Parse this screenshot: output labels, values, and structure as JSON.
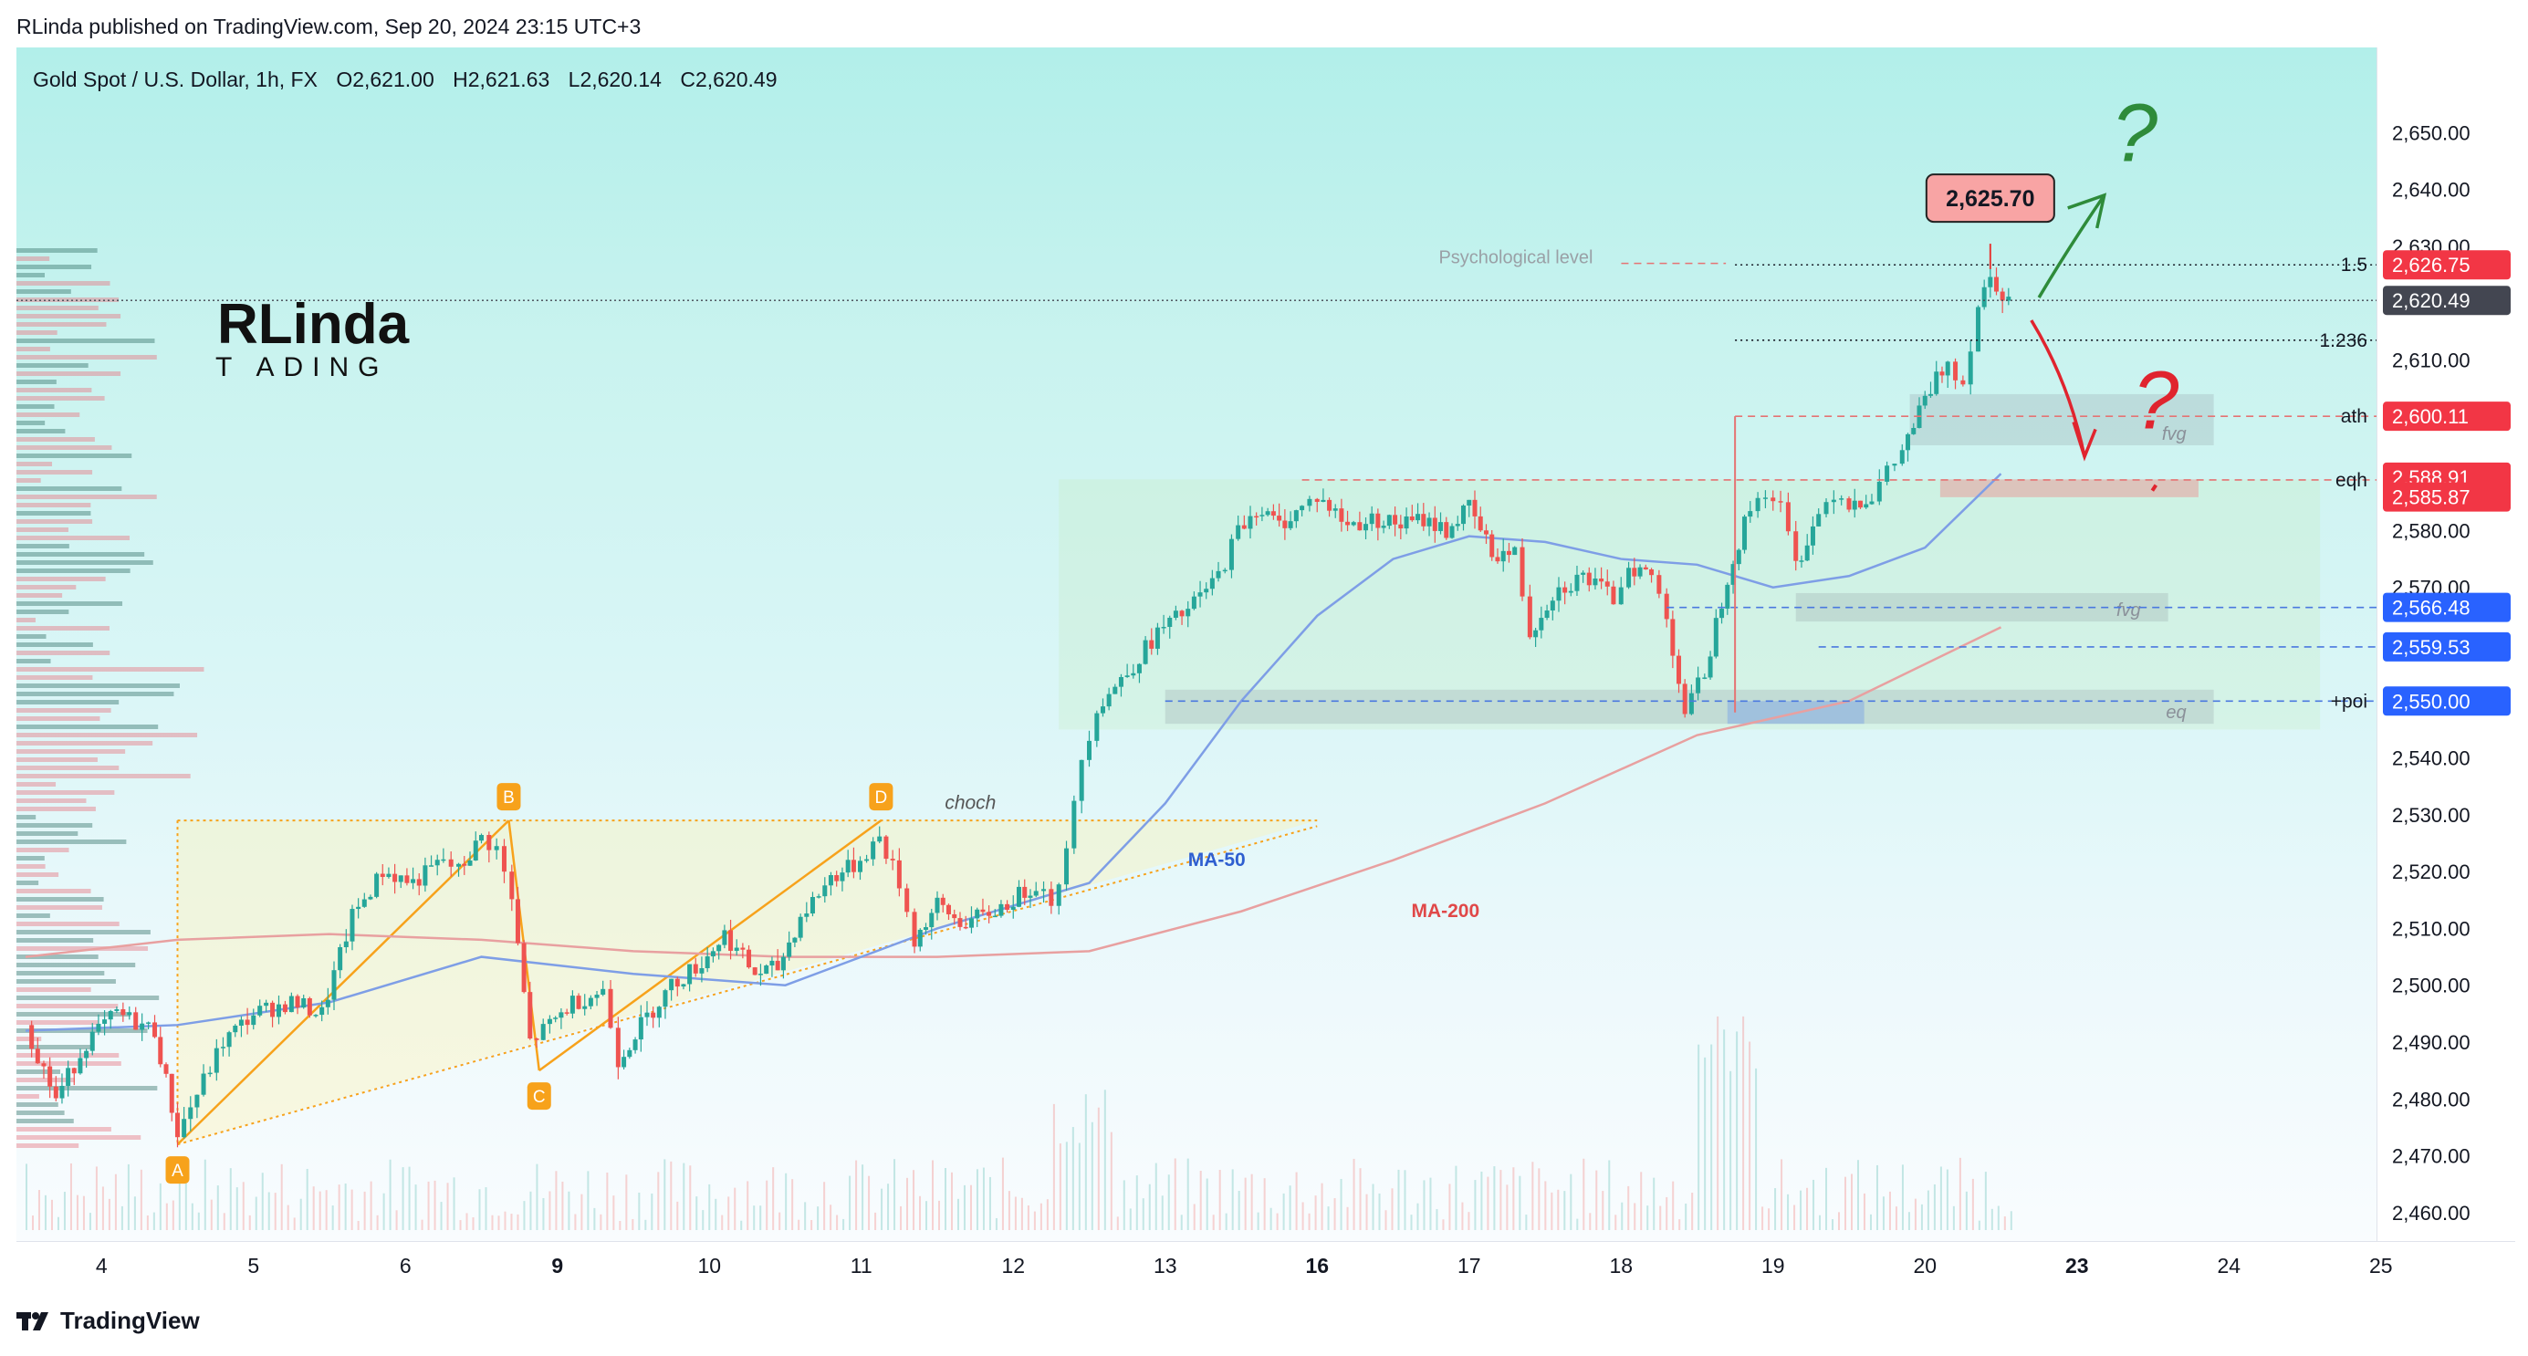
{
  "publish_line": "RLinda published on TradingView.com, Sep 20, 2024 23:15 UTC+3",
  "header": {
    "symbol": "Gold Spot / U.S. Dollar, 1h, FX",
    "open": "O2,621.00",
    "high": "H2,621.63",
    "low": "L2,620.14",
    "close": "C2,620.49"
  },
  "logo": {
    "line1": "RLinda",
    "line2": "T ADING"
  },
  "footer": {
    "brand": "TradingView"
  },
  "colors": {
    "up": "#26a69a",
    "down": "#ef5350",
    "ma50": "#7e9ee6",
    "ma200": "#e8a0a0",
    "blue_badge": "#2962ff",
    "red_badge": "#f23645",
    "current_badge": "#434651",
    "pattern": "#f7a21b",
    "green_arrow": "#2e8b3a",
    "red_arrow": "#e0242e"
  },
  "chart_data": {
    "type": "candlestick",
    "title": "Gold Spot / U.S. Dollar, 1h, FX",
    "ylim": [
      2455,
      2665
    ],
    "grid": false,
    "y_ticks": [
      2460,
      2470,
      2480,
      2490,
      2500,
      2510,
      2520,
      2530,
      2540,
      2560,
      2570,
      2580,
      2610,
      2630,
      2640,
      2650
    ],
    "y_tick_labels": [
      "2,460.00",
      "2,470.00",
      "2,480.00",
      "2,490.00",
      "2,500.00",
      "2,510.00",
      "2,520.00",
      "2,530.00",
      "2,540.00",
      "2,560.00",
      "2,570.00",
      "2,580.00",
      "2,610.00",
      "2,630.00",
      "2,640.00",
      "2,650.00"
    ],
    "x_ticks": [
      {
        "label": "4",
        "t": 3.5,
        "bold": false
      },
      {
        "label": "5",
        "t": 4.5,
        "bold": false
      },
      {
        "label": "6",
        "t": 5.5,
        "bold": false
      },
      {
        "label": "9",
        "t": 6.5,
        "bold": true
      },
      {
        "label": "10",
        "t": 7.5,
        "bold": false
      },
      {
        "label": "11",
        "t": 8.5,
        "bold": false
      },
      {
        "label": "12",
        "t": 9.5,
        "bold": false
      },
      {
        "label": "13",
        "t": 10.5,
        "bold": false
      },
      {
        "label": "16",
        "t": 11.5,
        "bold": true
      },
      {
        "label": "17",
        "t": 12.5,
        "bold": false
      },
      {
        "label": "18",
        "t": 13.5,
        "bold": false
      },
      {
        "label": "19",
        "t": 14.5,
        "bold": false
      },
      {
        "label": "20",
        "t": 15.5,
        "bold": false
      },
      {
        "label": "23",
        "t": 16.5,
        "bold": true
      },
      {
        "label": "24",
        "t": 17.5,
        "bold": false
      },
      {
        "label": "25",
        "t": 18.5,
        "bold": false
      }
    ],
    "ohlc_path": [
      [
        3.0,
        2493
      ],
      [
        3.2,
        2480
      ],
      [
        3.4,
        2490
      ],
      [
        3.6,
        2495
      ],
      [
        3.85,
        2492
      ],
      [
        4.0,
        2474
      ],
      [
        4.3,
        2490
      ],
      [
        4.5,
        2495
      ],
      [
        4.75,
        2497
      ],
      [
        4.95,
        2495
      ],
      [
        5.15,
        2512
      ],
      [
        5.35,
        2520
      ],
      [
        5.55,
        2518
      ],
      [
        5.75,
        2522
      ],
      [
        5.85,
        2520
      ],
      [
        6.0,
        2526
      ],
      [
        6.1,
        2524
      ],
      [
        6.2,
        2515
      ],
      [
        6.32,
        2490
      ],
      [
        6.45,
        2493
      ],
      [
        6.6,
        2497
      ],
      [
        6.8,
        2499
      ],
      [
        6.9,
        2487
      ],
      [
        7.05,
        2493
      ],
      [
        7.25,
        2500
      ],
      [
        7.45,
        2504
      ],
      [
        7.6,
        2509
      ],
      [
        7.8,
        2502
      ],
      [
        7.95,
        2503
      ],
      [
        8.1,
        2512
      ],
      [
        8.3,
        2519
      ],
      [
        8.45,
        2521
      ],
      [
        8.62,
        2526
      ],
      [
        8.75,
        2518
      ],
      [
        8.85,
        2508
      ],
      [
        9.0,
        2514
      ],
      [
        9.15,
        2511
      ],
      [
        9.3,
        2512
      ],
      [
        9.5,
        2515
      ],
      [
        9.65,
        2518
      ],
      [
        9.75,
        2515
      ],
      [
        9.85,
        2523
      ],
      [
        9.95,
        2540
      ],
      [
        10.05,
        2549
      ],
      [
        10.25,
        2555
      ],
      [
        10.45,
        2562
      ],
      [
        10.65,
        2566
      ],
      [
        10.85,
        2572
      ],
      [
        10.98,
        2580
      ],
      [
        11.1,
        2584
      ],
      [
        11.25,
        2581
      ],
      [
        11.4,
        2584
      ],
      [
        11.5,
        2586
      ],
      [
        11.7,
        2581
      ],
      [
        11.9,
        2582
      ],
      [
        12.05,
        2581
      ],
      [
        12.2,
        2582
      ],
      [
        12.35,
        2580
      ],
      [
        12.5,
        2584
      ],
      [
        12.65,
        2576
      ],
      [
        12.8,
        2576
      ],
      [
        12.9,
        2562
      ],
      [
        13.05,
        2569
      ],
      [
        13.25,
        2572
      ],
      [
        13.45,
        2568
      ],
      [
        13.55,
        2574
      ],
      [
        13.7,
        2572
      ],
      [
        13.8,
        2565
      ],
      [
        13.92,
        2548
      ],
      [
        14.05,
        2555
      ],
      [
        14.2,
        2572
      ],
      [
        14.35,
        2584
      ],
      [
        14.45,
        2587
      ],
      [
        14.55,
        2584
      ],
      [
        14.65,
        2574
      ],
      [
        14.8,
        2583
      ],
      [
        14.9,
        2587
      ],
      [
        15.0,
        2585
      ],
      [
        15.15,
        2586
      ],
      [
        15.25,
        2590
      ],
      [
        15.35,
        2594
      ],
      [
        15.5,
        2603
      ],
      [
        15.65,
        2610
      ],
      [
        15.75,
        2606
      ],
      [
        15.85,
        2620
      ],
      [
        15.93,
        2625
      ],
      [
        16.05,
        2620.49
      ]
    ],
    "ma50": [
      [
        3.0,
        2492
      ],
      [
        4.0,
        2493
      ],
      [
        5.0,
        2497
      ],
      [
        6.0,
        2505
      ],
      [
        7.0,
        2502
      ],
      [
        8.0,
        2500
      ],
      [
        9.0,
        2510
      ],
      [
        10.0,
        2518
      ],
      [
        10.5,
        2532
      ],
      [
        11.0,
        2550
      ],
      [
        11.5,
        2565
      ],
      [
        12.0,
        2575
      ],
      [
        12.5,
        2579
      ],
      [
        13.0,
        2578
      ],
      [
        13.5,
        2575
      ],
      [
        14.0,
        2574
      ],
      [
        14.5,
        2570
      ],
      [
        15.0,
        2572
      ],
      [
        15.5,
        2577
      ],
      [
        16.0,
        2590
      ]
    ],
    "ma200": [
      [
        3.0,
        2505
      ],
      [
        4.0,
        2508
      ],
      [
        5.0,
        2509
      ],
      [
        6.0,
        2508
      ],
      [
        7.0,
        2506
      ],
      [
        8.0,
        2505
      ],
      [
        9.0,
        2505
      ],
      [
        10.0,
        2506
      ],
      [
        11.0,
        2513
      ],
      [
        12.0,
        2522
      ],
      [
        13.0,
        2532
      ],
      [
        14.0,
        2544
      ],
      [
        15.0,
        2550
      ],
      [
        16.0,
        2563
      ]
    ],
    "abcd_points": [
      {
        "label": "A",
        "t": 4.0,
        "price": 2472
      },
      {
        "label": "B",
        "t": 6.18,
        "price": 2529
      },
      {
        "label": "C",
        "t": 6.38,
        "price": 2485
      },
      {
        "label": "D",
        "t": 8.63,
        "price": 2529
      }
    ],
    "triangle": {
      "t_start": 4.0,
      "t_end": 11.5,
      "top": 2529,
      "bottom_start": 2472,
      "bottom_end": 2528
    },
    "zones": [
      {
        "label": "",
        "t0": 9.8,
        "t1": 18.1,
        "p_top": 2589,
        "p_bot": 2545,
        "fill": "rgba(200,238,200,0.35)"
      },
      {
        "label": "fvg",
        "t0": 15.4,
        "t1": 17.4,
        "p_top": 2604,
        "p_bot": 2595,
        "fill": "rgba(140,150,160,0.25)"
      },
      {
        "label": "fvg",
        "t0": 14.65,
        "t1": 17.1,
        "p_top": 2569,
        "p_bot": 2564,
        "fill": "rgba(140,150,160,0.25)"
      },
      {
        "label": "eq",
        "t0": 10.5,
        "t1": 17.4,
        "p_top": 2552,
        "p_bot": 2546,
        "fill": "rgba(140,150,160,0.25)"
      },
      {
        "label": "",
        "t0": 14.2,
        "t1": 15.1,
        "p_top": 2550,
        "p_bot": 2546,
        "fill": "rgba(120,160,230,0.45)"
      },
      {
        "label": "",
        "t0": 15.6,
        "t1": 17.3,
        "p_top": 2589,
        "p_bot": 2585.87,
        "fill": "rgba(240,140,140,0.45)"
      }
    ],
    "levels": [
      {
        "label": "1.5",
        "price": 2626.75,
        "t0": 14.25,
        "style": "dotted",
        "color": "#131722"
      },
      {
        "label": "1.236",
        "price": 2613.5,
        "t0": 14.25,
        "style": "dotted",
        "color": "#131722"
      },
      {
        "label": "ath",
        "price": 2600.11,
        "t0": 14.25,
        "style": "dashed",
        "color": "#e57373"
      },
      {
        "label": "eqh",
        "price": 2588.91,
        "t0": 11.4,
        "style": "dashed",
        "color": "#e57373"
      },
      {
        "label": "",
        "price": 2566.48,
        "t0": 13.8,
        "style": "dashed",
        "color": "#4a78e0"
      },
      {
        "label": "",
        "price": 2559.53,
        "t0": 14.8,
        "style": "dashed",
        "color": "#4a78e0"
      },
      {
        "label": "+poi",
        "price": 2550.0,
        "t0": 10.5,
        "style": "dashed",
        "color": "#4a78e0"
      }
    ],
    "price_badges": [
      {
        "label": "2,626.75",
        "price": 2626.75,
        "color": "#f23645"
      },
      {
        "label": "2,620.49",
        "price": 2620.49,
        "color": "#434651"
      },
      {
        "label": "2,600.11",
        "price": 2600.11,
        "color": "#f23645"
      },
      {
        "label": "2,588.91",
        "price": 2589.4,
        "color": "#f23645"
      },
      {
        "label": "2,585.87",
        "price": 2585.9,
        "color": "#f23645"
      },
      {
        "label": "2,566.48",
        "price": 2566.48,
        "color": "#2962ff"
      },
      {
        "label": "2,559.53",
        "price": 2559.53,
        "color": "#2962ff"
      },
      {
        "label": "2,550.00",
        "price": 2550.0,
        "color": "#2962ff"
      }
    ],
    "high_callout": {
      "label": "2,625.70",
      "t": 15.93,
      "price": 2634
    },
    "annotations": [
      {
        "text": "Psychological level",
        "t": 12.3,
        "price": 2627,
        "color": "#9aa0a6",
        "style": "normal"
      },
      {
        "text": "choch",
        "t": 9.05,
        "price": 2531,
        "color": "#555555",
        "style": "italic"
      },
      {
        "text": "MA-50",
        "t": 10.65,
        "price": 2521,
        "color": "#2f5fd0",
        "style": "bold"
      },
      {
        "text": "MA-200",
        "t": 12.12,
        "price": 2512,
        "color": "#e04848",
        "style": "bold"
      }
    ],
    "question_marks": [
      {
        "t": 16.88,
        "price": 2645,
        "color": "#2e8b3a"
      },
      {
        "t": 17.02,
        "price": 2598,
        "color": "#e0242e"
      }
    ]
  }
}
